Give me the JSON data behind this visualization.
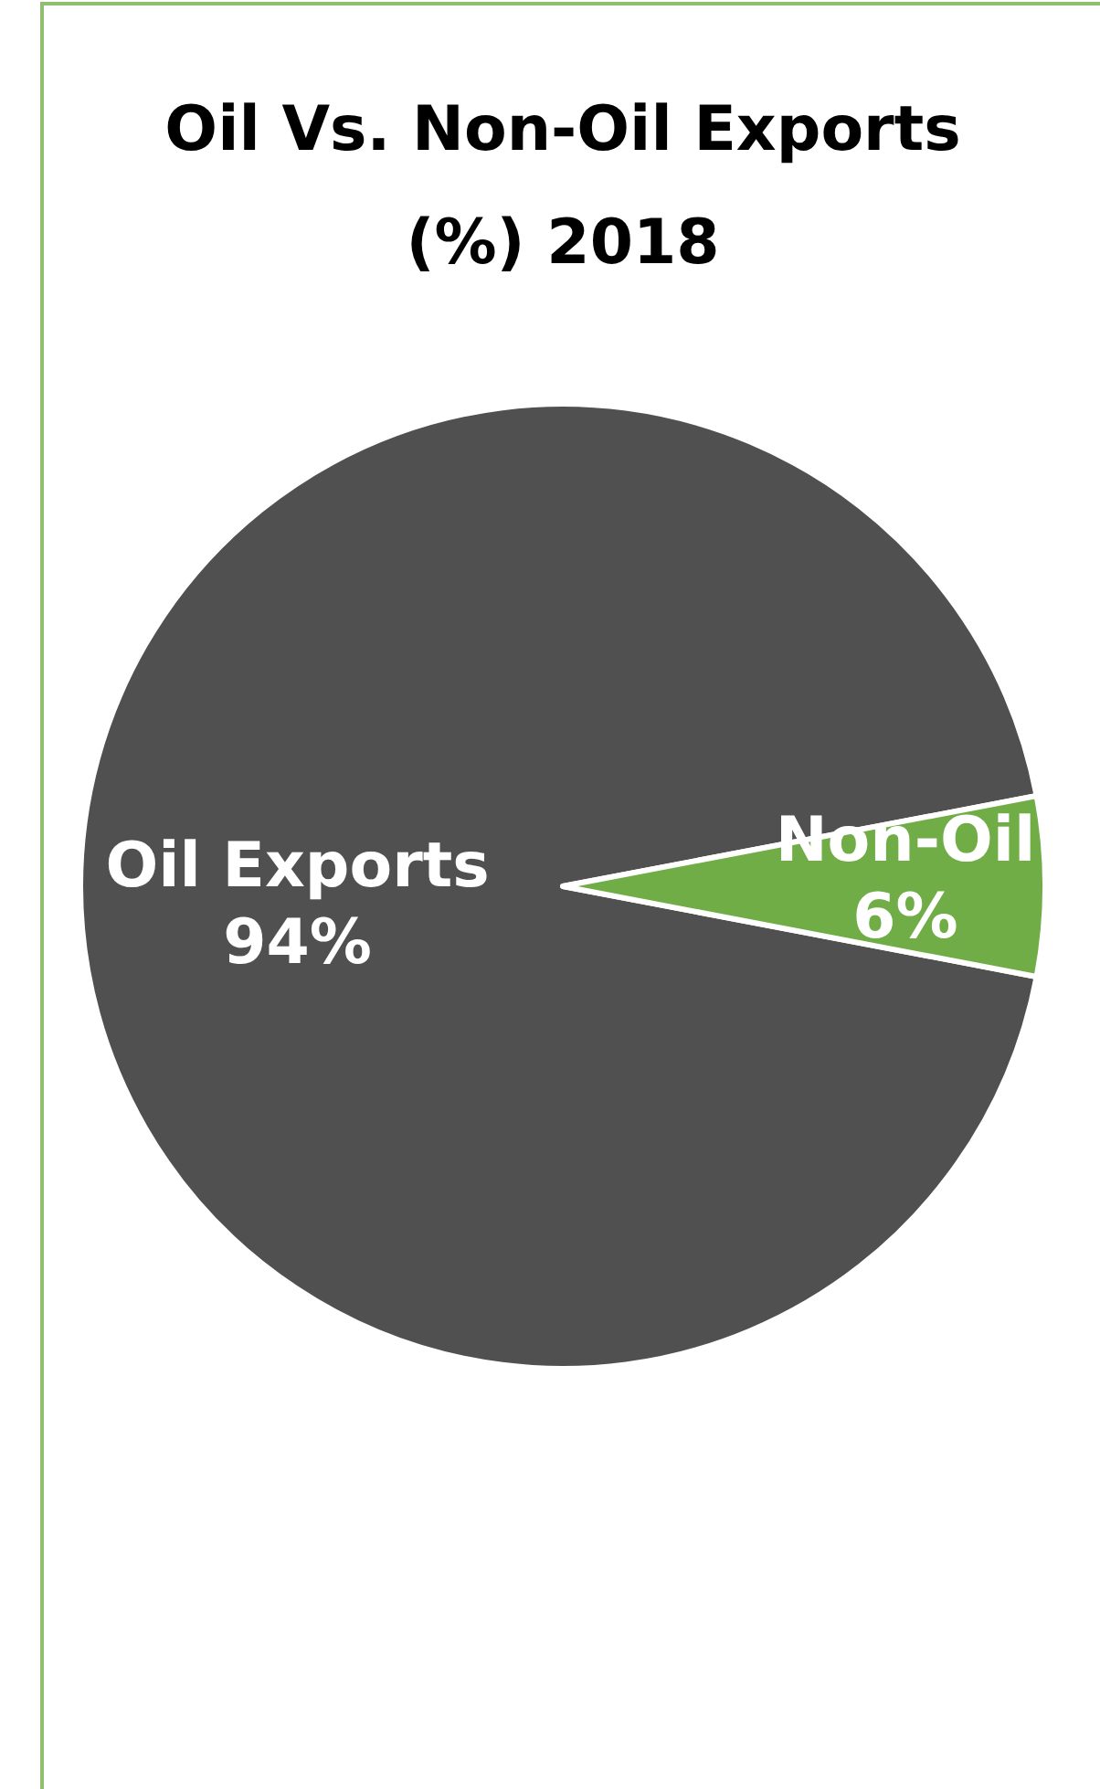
{
  "chart_data": {
    "type": "pie",
    "title": "Oil Vs. Non-Oil Exports (%) 2018",
    "categories": [
      "Oil Exports",
      "Non-Oil"
    ],
    "values": [
      94,
      6
    ],
    "colors": [
      "#505050",
      "#70ad47"
    ],
    "value_labels": [
      "94%",
      "6%"
    ]
  }
}
